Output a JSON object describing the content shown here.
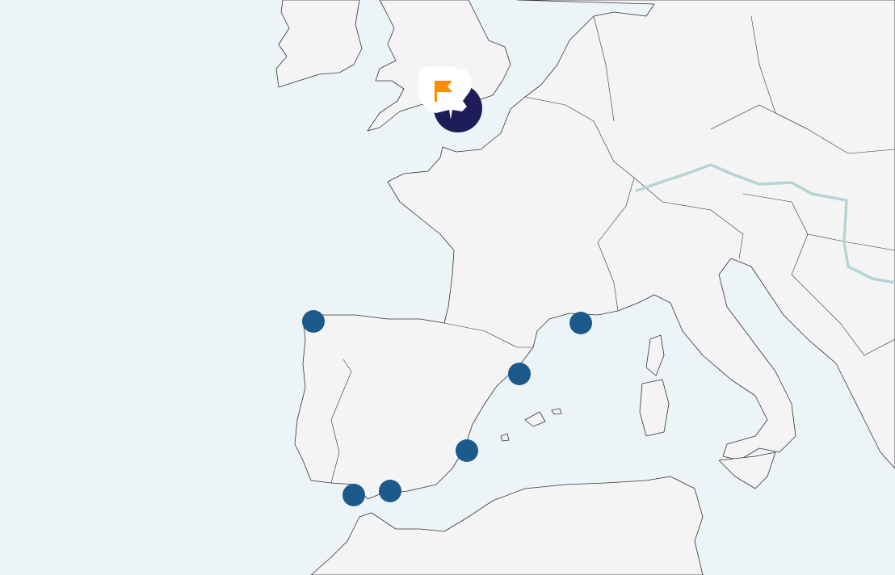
{
  "map": {
    "region": "Western Europe",
    "colors": {
      "sea": "#edf4f7",
      "land": "#f4f4f4",
      "marker": "#1b5a8a",
      "selected_marker": "#1f1c5a",
      "flag": "#ff8c00",
      "river": "#b7d4d4"
    },
    "markers": [
      {
        "id": "a-coruna",
        "lat": 43.37,
        "lon": -8.4
      },
      {
        "id": "nice",
        "lat": 43.7,
        "lon": 7.26
      },
      {
        "id": "barcelona",
        "lat": 41.39,
        "lon": 2.17
      },
      {
        "id": "valencia",
        "lat": 39.47,
        "lon": -0.38
      },
      {
        "id": "algeciras",
        "lat": 36.13,
        "lon": -5.45
      },
      {
        "id": "malaga",
        "lat": 36.72,
        "lon": -4.42
      }
    ],
    "selected_marker": {
      "id": "southampton",
      "icon": "flag-icon",
      "lat": 50.9,
      "lon": -1.4
    }
  }
}
